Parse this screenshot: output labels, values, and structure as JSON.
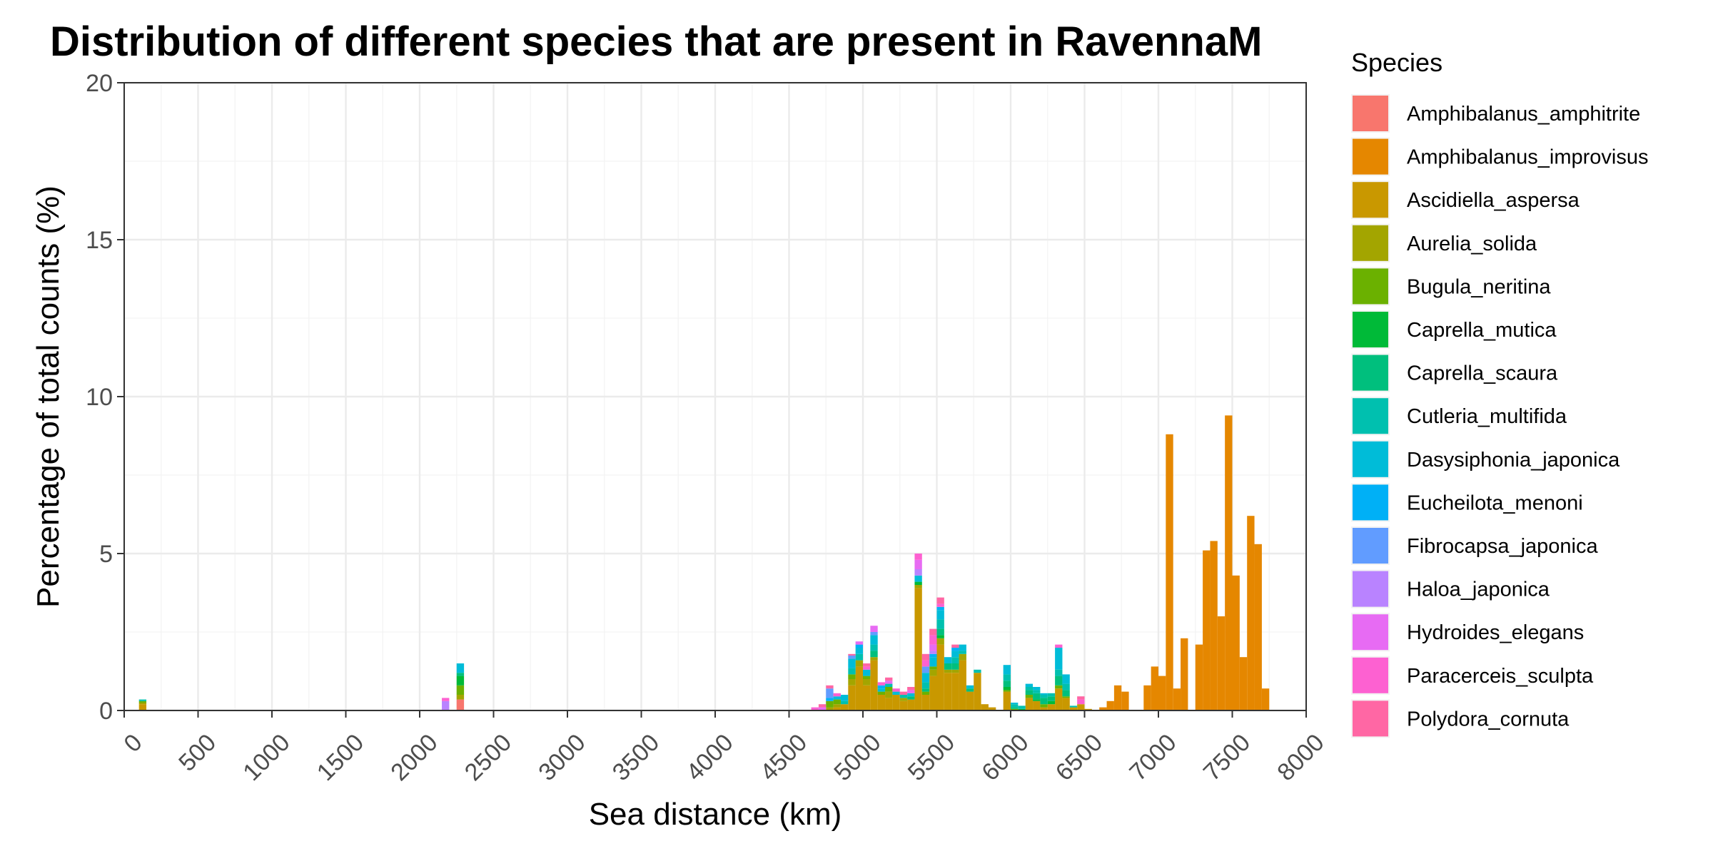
{
  "chart_data": {
    "type": "bar",
    "stacked": true,
    "title": "Distribution of different species that are present in RavennaM",
    "xlabel": "Sea distance (km)",
    "ylabel": "Percentage of total counts (%)",
    "xlim": [
      0,
      8000
    ],
    "ylim": [
      0,
      20
    ],
    "bin_width_km": 50,
    "x_ticks": [
      "0",
      "500",
      "1000",
      "1500",
      "2000",
      "2500",
      "3000",
      "3500",
      "4000",
      "4500",
      "5000",
      "5500",
      "6000",
      "6500",
      "7000",
      "7500",
      "8000"
    ],
    "y_ticks": [
      "0",
      "5",
      "10",
      "15",
      "20"
    ],
    "grid": true,
    "legend_position": "right",
    "legend_title": "Species",
    "series": [
      {
        "name": "Amphibalanus_amphitrite",
        "color": "#F8766D",
        "values": [
          [
            2275,
            0.35
          ]
        ]
      },
      {
        "name": "Amphibalanus_improvisus",
        "color": "#E58700",
        "values": [
          [
            6625,
            0.1
          ],
          [
            6675,
            0.3
          ],
          [
            6725,
            0.8
          ],
          [
            6775,
            0.6
          ],
          [
            6925,
            0.8
          ],
          [
            6975,
            1.4
          ],
          [
            7025,
            1.1
          ],
          [
            7075,
            8.8
          ],
          [
            7125,
            0.7
          ],
          [
            7175,
            2.3
          ],
          [
            7275,
            2.1
          ],
          [
            7325,
            5.1
          ],
          [
            7375,
            5.4
          ],
          [
            7425,
            3.0
          ],
          [
            7475,
            9.4
          ],
          [
            7525,
            4.3
          ],
          [
            7575,
            1.7
          ],
          [
            7625,
            6.2
          ],
          [
            7675,
            5.3
          ],
          [
            7725,
            0.7
          ]
        ]
      },
      {
        "name": "Ascidiella_aspersa",
        "color": "#C99800",
        "values": [
          [
            125,
            0.2
          ],
          [
            4825,
            0.1
          ],
          [
            4875,
            0.2
          ],
          [
            4925,
            0.8
          ],
          [
            4975,
            1.4
          ],
          [
            5025,
            0.8
          ],
          [
            5075,
            1.6
          ],
          [
            5125,
            0.5
          ],
          [
            5175,
            0.4
          ],
          [
            5225,
            0.5
          ],
          [
            5275,
            0.3
          ],
          [
            5325,
            0.35
          ],
          [
            5375,
            3.9
          ],
          [
            5425,
            0.5
          ],
          [
            5475,
            1.1
          ],
          [
            5525,
            2.1
          ],
          [
            5575,
            1.2
          ],
          [
            5625,
            1.2
          ],
          [
            5675,
            1.6
          ],
          [
            5725,
            0.6
          ],
          [
            5775,
            1.2
          ],
          [
            5825,
            0.2
          ],
          [
            5875,
            0.1
          ],
          [
            5975,
            0.6
          ],
          [
            6125,
            0.4
          ],
          [
            6175,
            0.3
          ],
          [
            6225,
            0.1
          ],
          [
            6275,
            0.2
          ],
          [
            6325,
            0.7
          ],
          [
            6375,
            0.4
          ],
          [
            6425,
            0.1
          ],
          [
            6475,
            0.2
          ],
          [
            6525,
            0.05
          ]
        ]
      },
      {
        "name": "Aurelia_solida",
        "color": "#A3A500",
        "values": [
          [
            125,
            0.05
          ],
          [
            2275,
            0.15
          ],
          [
            4775,
            0.1
          ],
          [
            4825,
            0.1
          ],
          [
            4925,
            0.2
          ],
          [
            4975,
            0.2
          ],
          [
            5025,
            0.2
          ],
          [
            5075,
            0.1
          ],
          [
            5175,
            0.2
          ],
          [
            5275,
            0.1
          ],
          [
            5375,
            0.1
          ],
          [
            5475,
            0.2
          ],
          [
            5525,
            0.2
          ],
          [
            5575,
            0.1
          ],
          [
            5625,
            0.1
          ],
          [
            5675,
            0.2
          ]
        ]
      },
      {
        "name": "Bugula_neritina",
        "color": "#6BB100",
        "values": [
          [
            125,
            0.05
          ],
          [
            2275,
            0.3
          ],
          [
            4775,
            0.2
          ],
          [
            4825,
            0.15
          ],
          [
            4925,
            0.15
          ],
          [
            5025,
            0.1
          ],
          [
            5125,
            0.1
          ],
          [
            5175,
            0.15
          ],
          [
            5425,
            0.1
          ],
          [
            5475,
            0.1
          ],
          [
            5975,
            0.05
          ],
          [
            6025,
            0.05
          ],
          [
            6125,
            0.1
          ],
          [
            6225,
            0.1
          ],
          [
            6325,
            0.1
          ],
          [
            6375,
            0.05
          ]
        ]
      },
      {
        "name": "Caprella_mutica",
        "color": "#00BA38",
        "values": [
          [
            2275,
            0.3
          ],
          [
            5375,
            0.1
          ],
          [
            5525,
            0.1
          ],
          [
            5975,
            0.1
          ],
          [
            6075,
            0.05
          ],
          [
            6175,
            0.05
          ],
          [
            6275,
            0.1
          ]
        ]
      },
      {
        "name": "Caprella_scaura",
        "color": "#00BF7D",
        "values": [
          [
            2275,
            0.1
          ],
          [
            5075,
            0.2
          ],
          [
            5325,
            0.1
          ],
          [
            5425,
            0.1
          ],
          [
            5525,
            0.2
          ],
          [
            5575,
            0.2
          ],
          [
            5625,
            0.2
          ],
          [
            5725,
            0.1
          ],
          [
            5975,
            0.2
          ],
          [
            6025,
            0.05
          ],
          [
            6125,
            0.15
          ],
          [
            6175,
            0.2
          ],
          [
            6225,
            0.2
          ],
          [
            6275,
            0.15
          ],
          [
            6325,
            0.3
          ],
          [
            6375,
            0.2
          ]
        ]
      },
      {
        "name": "Cutleria_multifida",
        "color": "#00C0AF",
        "values": [
          [
            125,
            0.05
          ],
          [
            4875,
            0.1
          ],
          [
            4925,
            0.2
          ],
          [
            4975,
            0.2
          ],
          [
            5075,
            0.2
          ],
          [
            5175,
            0.1
          ],
          [
            5275,
            0.1
          ],
          [
            5425,
            0.2
          ],
          [
            5525,
            0.3
          ],
          [
            5625,
            0.2
          ],
          [
            5675,
            0.1
          ],
          [
            5775,
            0.1
          ],
          [
            5975,
            0.2
          ],
          [
            6025,
            0.1
          ],
          [
            6075,
            0.1
          ],
          [
            6125,
            0.1
          ],
          [
            6175,
            0.1
          ],
          [
            6225,
            0.1
          ],
          [
            6275,
            0.1
          ],
          [
            6325,
            0.2
          ],
          [
            6375,
            0.2
          ],
          [
            6425,
            0.05
          ]
        ]
      },
      {
        "name": "Dasysiphonia_japonica",
        "color": "#00BCD8",
        "values": [
          [
            2275,
            0.3
          ],
          [
            4825,
            0.1
          ],
          [
            4875,
            0.2
          ],
          [
            4925,
            0.3
          ],
          [
            4975,
            0.2
          ],
          [
            5025,
            0.2
          ],
          [
            5075,
            0.3
          ],
          [
            5125,
            0.1
          ],
          [
            5225,
            0.1
          ],
          [
            5325,
            0.1
          ],
          [
            5375,
            0.2
          ],
          [
            5425,
            0.3
          ],
          [
            5475,
            0.3
          ],
          [
            5525,
            0.3
          ],
          [
            5575,
            0.2
          ],
          [
            5625,
            0.2
          ],
          [
            5675,
            0.2
          ],
          [
            5725,
            0.1
          ],
          [
            5975,
            0.3
          ],
          [
            6025,
            0.05
          ],
          [
            6125,
            0.1
          ],
          [
            6175,
            0.1
          ],
          [
            6225,
            0.05
          ],
          [
            6325,
            0.7
          ],
          [
            6375,
            0.3
          ]
        ]
      },
      {
        "name": "Eucheilota_menoni",
        "color": "#00B0F6",
        "values": [
          [
            4775,
            0.1
          ],
          [
            4975,
            0.1
          ],
          [
            5125,
            0.1
          ],
          [
            5475,
            0.1
          ],
          [
            5525,
            0.1
          ],
          [
            5625,
            0.1
          ]
        ]
      },
      {
        "name": "Fibrocapsa_japonica",
        "color": "#619CFF",
        "values": [
          [
            4775,
            0.3
          ],
          [
            4925,
            0.1
          ],
          [
            5075,
            0.1
          ],
          [
            5425,
            0.2
          ]
        ]
      },
      {
        "name": "Haloa_japonica",
        "color": "#B983FF",
        "values": [
          [
            2175,
            0.3
          ],
          [
            5375,
            0.2
          ],
          [
            5475,
            0.1
          ]
        ]
      },
      {
        "name": "Hydroides_elegans",
        "color": "#E76BF3",
        "values": [
          [
            4725,
            0.1
          ],
          [
            4975,
            0.1
          ],
          [
            5075,
            0.2
          ],
          [
            5175,
            0.1
          ],
          [
            5325,
            0.1
          ],
          [
            5375,
            0.3
          ],
          [
            5475,
            0.2
          ]
        ]
      },
      {
        "name": "Paracerceis_sculpta",
        "color": "#FD61D1",
        "values": [
          [
            2175,
            0.1
          ],
          [
            4675,
            0.1
          ],
          [
            4825,
            0.1
          ],
          [
            5025,
            0.1
          ],
          [
            5125,
            0.1
          ],
          [
            5225,
            0.1
          ],
          [
            5375,
            0.2
          ],
          [
            5425,
            0.2
          ],
          [
            5475,
            0.3
          ],
          [
            5525,
            0.1
          ],
          [
            6325,
            0.1
          ],
          [
            6475,
            0.15
          ]
        ]
      },
      {
        "name": "Polydora_cornuta",
        "color": "#FF67A4",
        "values": [
          [
            4725,
            0.1
          ],
          [
            4775,
            0.1
          ],
          [
            4925,
            0.05
          ],
          [
            5025,
            0.1
          ],
          [
            5175,
            0.1
          ],
          [
            5275,
            0.1
          ],
          [
            5325,
            0.1
          ],
          [
            5425,
            0.2
          ],
          [
            5475,
            0.2
          ],
          [
            5525,
            0.2
          ],
          [
            5625,
            0.1
          ],
          [
            6475,
            0.1
          ]
        ]
      }
    ]
  }
}
